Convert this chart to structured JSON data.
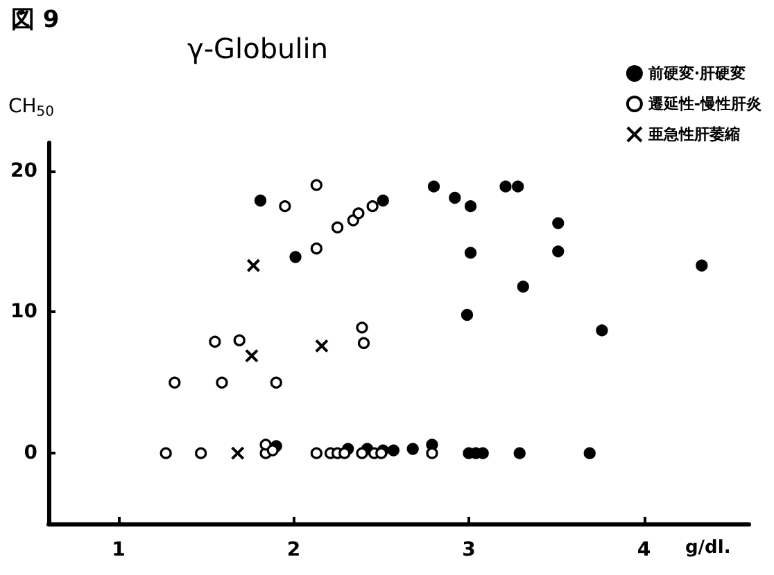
{
  "chart_data": {
    "type": "scatter",
    "title": "γ-Globulin",
    "xlabel": "g/dl.",
    "ylabel": "CH$_{50}$",
    "annotations": [
      "図 9"
    ],
    "xlim": [
      0.6,
      4.6
    ],
    "xticks": [
      1,
      2,
      3,
      4
    ],
    "ylim": [
      -5,
      22
    ],
    "yticks": [
      0,
      10,
      20
    ],
    "grid": false,
    "legend": "top right",
    "series": [
      {
        "name": "前硬変·肝硬変",
        "color": "#000000",
        "marker": "circle",
        "x": [
          1.81,
          2.01,
          2.51,
          2.8,
          2.92,
          3.01,
          3.01,
          2.99,
          3.21,
          3.28,
          3.51,
          3.51,
          3.31,
          4.33,
          3.76,
          1.9,
          2.31,
          2.42,
          2.51,
          2.57,
          2.68,
          2.79,
          3.0,
          3.04,
          3.08,
          3.29,
          3.69
        ],
        "values": [
          17.9,
          13.9,
          17.9,
          18.9,
          18.1,
          17.5,
          14.2,
          9.8,
          18.9,
          18.9,
          16.3,
          14.3,
          11.8,
          13.3,
          8.7,
          0.5,
          0.3,
          0.3,
          0.2,
          0.2,
          0.3,
          0.6,
          0,
          0,
          0,
          0,
          0
        ]
      },
      {
        "name": "遷延性-慢性肝炎",
        "color": "#ffffff",
        "marker": "circle",
        "x": [
          2.13,
          1.95,
          2.13,
          2.25,
          2.34,
          2.37,
          2.45,
          2.39,
          2.4,
          1.55,
          1.69,
          1.32,
          1.59,
          1.9,
          1.27,
          1.47,
          1.84,
          1.84,
          1.88,
          2.13,
          2.21,
          2.25,
          2.29,
          2.39,
          2.46,
          2.5,
          2.79
        ],
        "values": [
          19.0,
          17.5,
          14.5,
          16.0,
          16.5,
          17.0,
          17.5,
          8.9,
          7.8,
          7.9,
          8.0,
          5.0,
          5.0,
          5.0,
          0,
          0,
          0,
          0.6,
          0.2,
          0,
          0,
          0,
          0,
          0,
          0,
          0,
          0
        ]
      },
      {
        "name": "亜急性肝萎縮",
        "color": "#000000",
        "marker": "cross",
        "x": [
          1.77,
          1.76,
          2.16,
          1.68
        ],
        "values": [
          13.3,
          6.9,
          7.6,
          0
        ]
      }
    ]
  }
}
